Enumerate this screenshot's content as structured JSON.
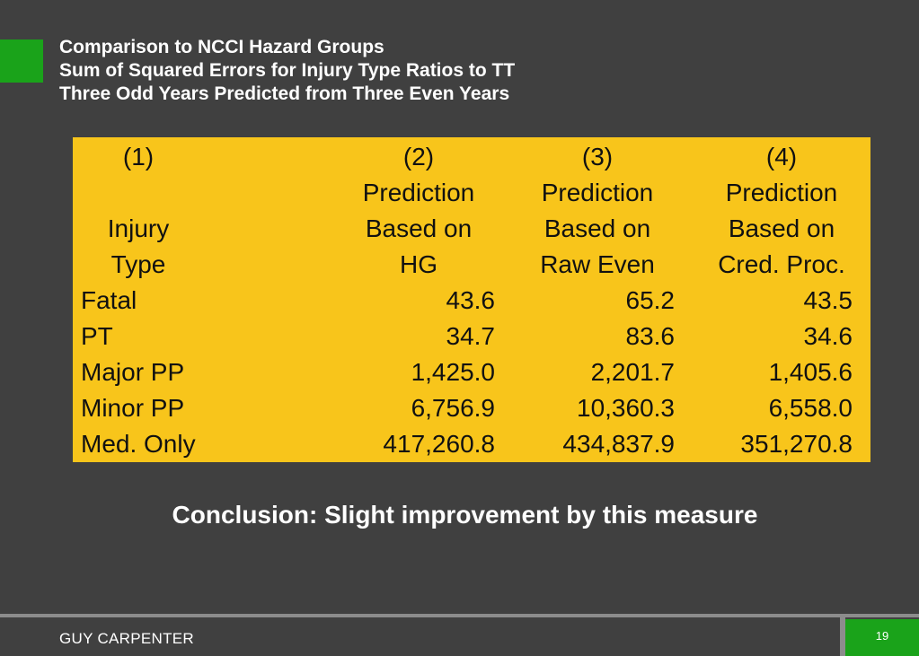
{
  "title": {
    "line1": "Comparison to NCCI Hazard Groups",
    "line2": "Sum of Squared Errors for Injury Type Ratios to TT",
    "line3": "Three Odd Years Predicted from Three Even Years"
  },
  "table": {
    "headers": [
      [
        "(1)",
        "",
        "Injury",
        "Type"
      ],
      [
        "(2)",
        "Prediction",
        "Based on",
        "HG"
      ],
      [
        "(3)",
        "Prediction",
        "Based on",
        "Raw Even"
      ],
      [
        "(4)",
        "Prediction",
        "Based on",
        "Cred. Proc."
      ]
    ],
    "rows": [
      [
        "Fatal",
        "43.6",
        "65.2",
        "43.5"
      ],
      [
        "PT",
        "34.7",
        "83.6",
        "34.6"
      ],
      [
        "Major PP",
        "1,425.0",
        "2,201.7",
        "1,405.6"
      ],
      [
        "Minor PP",
        "6,756.9",
        "10,360.3",
        "6,558.0"
      ],
      [
        "Med. Only",
        "417,260.8",
        "434,837.9",
        "351,270.8"
      ]
    ]
  },
  "conclusion": "Conclusion: Slight improvement by this measure",
  "footer": {
    "brand": "GUY CARPENTER",
    "page_number": "19"
  },
  "colors": {
    "background": "#404040",
    "accent": "#1aa31a",
    "table_fill": "#f8c51b"
  }
}
